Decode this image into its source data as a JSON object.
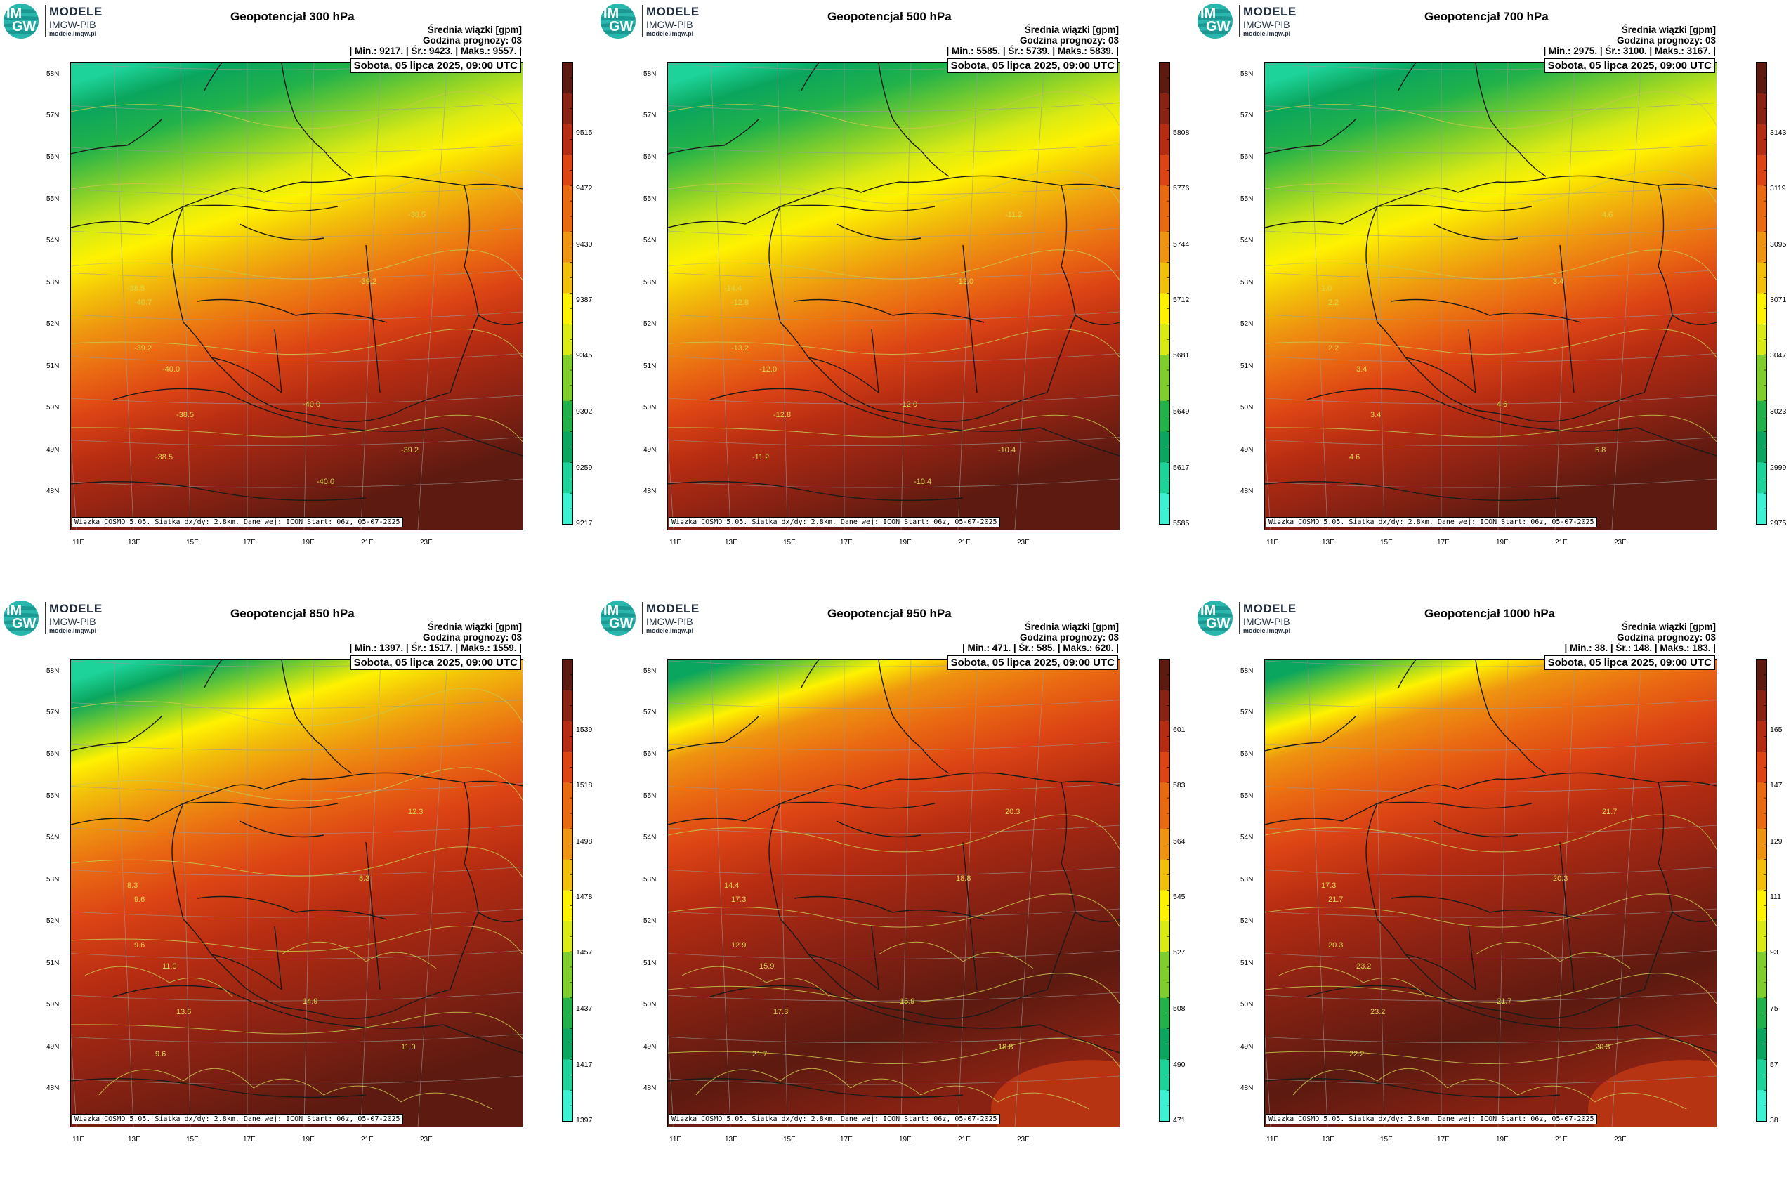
{
  "logo": {
    "badge_top": "IM",
    "badge_bottom": "GW",
    "line1": "MODELE",
    "line2": "IMGW-PIB",
    "line3": "modele.imgw.pl"
  },
  "common": {
    "subtitle": "Średnia wiązki [gpm]",
    "forecast_hour": "Godzina prognozy: 03",
    "date": "Sobota, 05 lipca 2025, 09:00 UTC",
    "footer": "Wiązka COSMO 5.05. Siatka dx/dy: 2.8km. Dane wej: ICON Start: 06z, 05-07-2025",
    "lat_labels": [
      "58N",
      "57N",
      "56N",
      "55N",
      "54N",
      "53N",
      "52N",
      "51N",
      "50N",
      "49N",
      "48N"
    ],
    "lon_labels": [
      "11E",
      "13E",
      "15E",
      "17E",
      "19E",
      "21E",
      "23E"
    ]
  },
  "colors": {
    "scale": [
      "#3df2d2",
      "#1ed39a",
      "#0aa55e",
      "#22b24a",
      "#7fce2c",
      "#d9ea14",
      "#fff200",
      "#f2c00a",
      "#ee9410",
      "#ea6a12",
      "#dc4414",
      "#b52c12",
      "#8a2213",
      "#5c1a10"
    ]
  },
  "panels": [
    {
      "title": "Geopotencjał 300 hPa",
      "stats": "| Min.:    9217. | Śr.:    9423. | Maks.:    9557. |",
      "colorbar": [
        "9515",
        "9472",
        "9430",
        "9387",
        "9345",
        "9302",
        "9259",
        "9217"
      ],
      "contours": [
        "-38.5",
        "-39.2",
        "-40.0",
        "-40.7",
        "-39.2",
        "-38.5",
        "-38.5",
        "-40.0",
        "-39.2",
        "-38.5",
        "-40.0"
      ],
      "style": "green"
    },
    {
      "title": "Geopotencjał 500 hPa",
      "stats": "| Min.:    5585. | Śr.:    5739. | Maks.:    5839. |",
      "colorbar": [
        "5808",
        "5776",
        "5744",
        "5712",
        "5681",
        "5649",
        "5617",
        "5585"
      ],
      "contours": [
        "-14.4",
        "-13.2",
        "-12.0",
        "-12.8",
        "-12.0",
        "-11.2",
        "-12.8",
        "-12.0",
        "-10.4",
        "-11.2",
        "-10.4"
      ],
      "style": "green"
    },
    {
      "title": "Geopotencjał 700 hPa",
      "stats": "| Min.:    2975. | Śr.:    3100. | Maks.:    3167. |",
      "colorbar": [
        "3143",
        "3119",
        "3095",
        "3071",
        "3047",
        "3023",
        "2999",
        "2975"
      ],
      "contours": [
        "1.0",
        "2.2",
        "3.4",
        "2.2",
        "3.4",
        "4.6",
        "3.4",
        "4.6",
        "5.8",
        "4.6"
      ],
      "style": "green"
    },
    {
      "title": "Geopotencjał 850 hPa",
      "stats": "| Min.:    1397. | Śr.:    1517. | Maks.:    1559. |",
      "colorbar": [
        "1539",
        "1518",
        "1498",
        "1478",
        "1457",
        "1437",
        "1417",
        "1397"
      ],
      "contours": [
        "8.3",
        "9.6",
        "11.0",
        "9.6",
        "8.3",
        "12.3",
        "13.6",
        "14.9",
        "11.0",
        "9.6"
      ],
      "style": "orange"
    },
    {
      "title": "Geopotencjał 950 hPa",
      "stats": "| Min.:     471. | Śr.:     585. | Maks.:     620. |",
      "colorbar": [
        "601",
        "583",
        "564",
        "545",
        "527",
        "508",
        "490",
        "471"
      ],
      "contours": [
        "14.4",
        "12.9",
        "15.9",
        "17.3",
        "18.8",
        "20.3",
        "17.3",
        "15.9",
        "18.8",
        "21.7"
      ],
      "style": "dark"
    },
    {
      "title": "Geopotencjał 1000 hPa",
      "stats": "| Min.:      38. | Śr.:     148. | Maks.:     183. |",
      "colorbar": [
        "165",
        "147",
        "129",
        "111",
        "93",
        "75",
        "57",
        "38"
      ],
      "contours": [
        "17.3",
        "20.3",
        "23.2",
        "21.7",
        "20.3",
        "21.7",
        "23.2",
        "21.7",
        "20.3",
        "22.2"
      ],
      "style": "dark"
    }
  ]
}
